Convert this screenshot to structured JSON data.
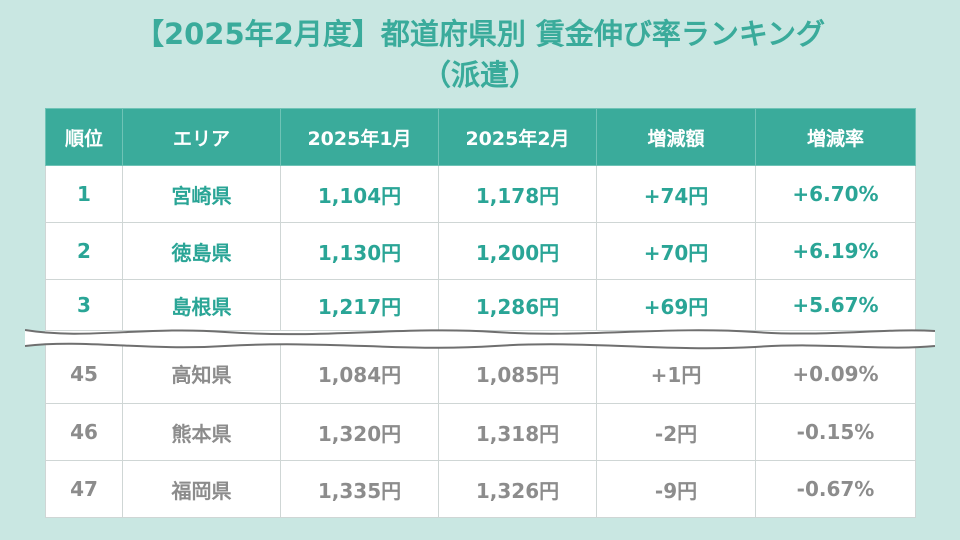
{
  "title": {
    "line1": "【2025年2月度】都道府県別 賃金伸び率ランキング",
    "line2": "（派遣）"
  },
  "table": {
    "headers": [
      "順位",
      "エリア",
      "2025年1月",
      "2025年2月",
      "増減額",
      "増減率"
    ],
    "top_rows": [
      {
        "rank": "1",
        "area": "宮崎県",
        "jan": "1,104円",
        "feb": "1,178円",
        "diff": "+74円",
        "rate": "+6.70%"
      },
      {
        "rank": "2",
        "area": "徳島県",
        "jan": "1,130円",
        "feb": "1,200円",
        "diff": "+70円",
        "rate": "+6.19%"
      },
      {
        "rank": "3",
        "area": "島根県",
        "jan": "1,217円",
        "feb": "1,286円",
        "diff": "+69円",
        "rate": "+5.67%"
      }
    ],
    "bottom_rows": [
      {
        "rank": "45",
        "area": "高知県",
        "jan": "1,084円",
        "feb": "1,085円",
        "diff": "+1円",
        "rate": "+0.09%"
      },
      {
        "rank": "46",
        "area": "熊本県",
        "jan": "1,320円",
        "feb": "1,318円",
        "diff": "-2円",
        "rate": "-0.15%"
      },
      {
        "rank": "47",
        "area": "福岡県",
        "jan": "1,335円",
        "feb": "1,326円",
        "diff": "-9円",
        "rate": "-0.67%"
      }
    ]
  },
  "colors": {
    "background": "#c9e7e2",
    "accent": "#3aab9b",
    "top_text": "#2aa596",
    "bottom_text": "#8c8c8c"
  }
}
